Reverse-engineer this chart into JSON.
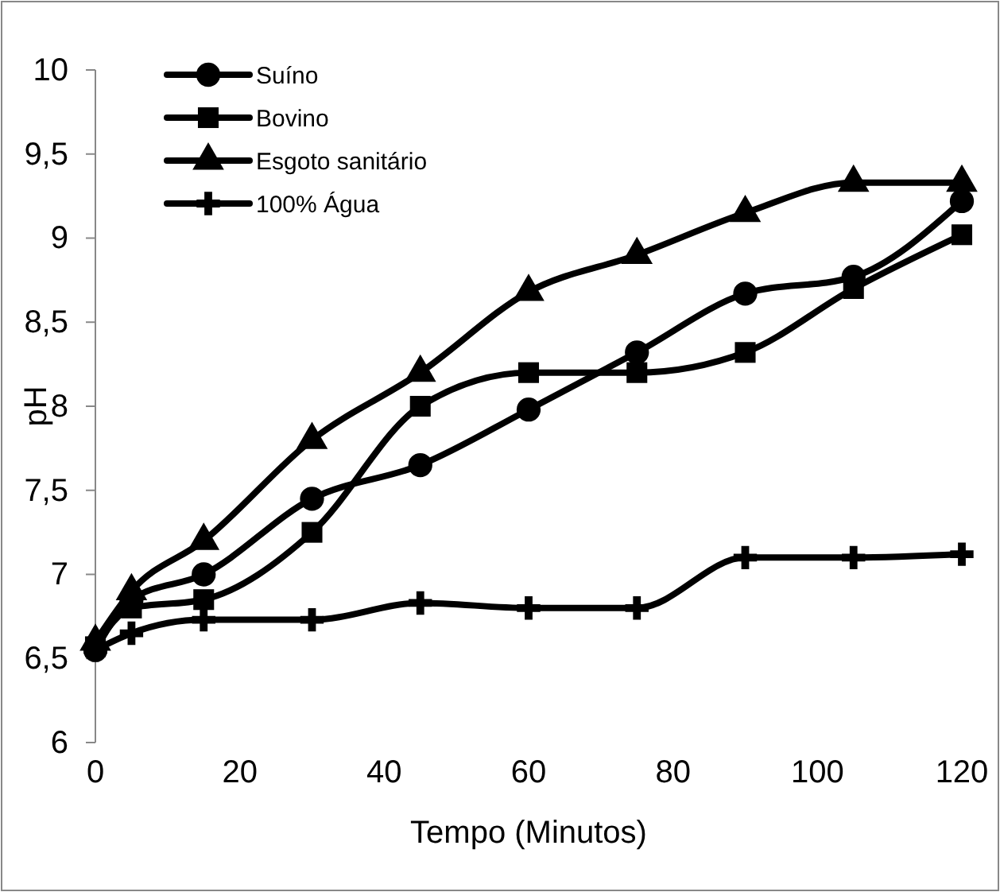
{
  "chart_data": {
    "type": "line",
    "xlabel": "Tempo (Minutos)",
    "ylabel": "pH",
    "x": [
      0,
      5,
      15,
      30,
      45,
      60,
      75,
      90,
      105,
      120
    ],
    "xlim": [
      0,
      120
    ],
    "xticks": [
      0,
      20,
      40,
      60,
      80,
      100,
      120
    ],
    "ylim": [
      6,
      10
    ],
    "yticks": [
      6,
      {
        "value": 6.5,
        "label": "6,5"
      },
      7,
      {
        "value": 7.5,
        "label": "7,5"
      },
      8,
      {
        "value": 8.5,
        "label": "8,5"
      },
      9,
      {
        "value": 9.5,
        "label": "9,5"
      },
      10
    ],
    "legend": "top left",
    "grid": false,
    "series": [
      {
        "name": "Suíno",
        "color": "#000000",
        "marker": "circle",
        "values": [
          6.55,
          6.85,
          7.0,
          7.45,
          7.65,
          7.98,
          8.32,
          8.67,
          8.77,
          9.22
        ]
      },
      {
        "name": "Bovino",
        "color": "#000000",
        "marker": "square",
        "values": [
          6.57,
          6.8,
          6.85,
          7.25,
          8.0,
          8.2,
          8.2,
          8.32,
          8.7,
          9.02
        ]
      },
      {
        "name": "Esgoto sanitário",
        "color": "#000000",
        "marker": "triangle",
        "values": [
          6.6,
          6.9,
          7.2,
          7.8,
          8.2,
          8.68,
          8.9,
          9.15,
          9.33,
          9.33
        ]
      },
      {
        "name": "100% Água",
        "color": "#000000",
        "marker": "cross",
        "values": [
          6.55,
          6.65,
          6.73,
          6.73,
          6.83,
          6.8,
          6.8,
          7.1,
          7.1,
          7.12
        ]
      }
    ]
  }
}
